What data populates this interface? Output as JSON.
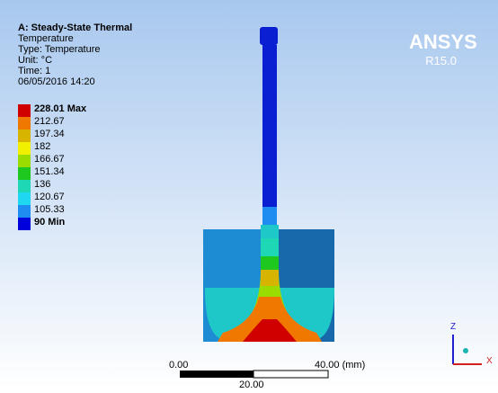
{
  "header": {
    "title": "A: Steady-State Thermal",
    "lines": [
      "Temperature",
      "Type: Temperature",
      "Unit: °C",
      "Time: 1",
      "06/05/2016 14:20"
    ]
  },
  "legend": [
    {
      "label": "228.01 Max",
      "color": "#d10000"
    },
    {
      "label": "212.67",
      "color": "#f07800"
    },
    {
      "label": "197.34",
      "color": "#d7b400"
    },
    {
      "label": "182",
      "color": "#f0f000"
    },
    {
      "label": "166.67",
      "color": "#9bdc00"
    },
    {
      "label": "151.34",
      "color": "#1ec81e"
    },
    {
      "label": "136",
      "color": "#1ed7b4"
    },
    {
      "label": "120.67",
      "color": "#1ed7f0"
    },
    {
      "label": "105.33",
      "color": "#1e8cf0"
    },
    {
      "label": "90 Min",
      "color": "#0000dc"
    }
  ],
  "logo": {
    "name": "ANSYS",
    "version": "R15.0"
  },
  "scale_bar": {
    "start": "0.00",
    "end": "40.00 (mm)",
    "middle": "20.00"
  },
  "triad": {
    "z": "Z",
    "x": "X"
  }
}
